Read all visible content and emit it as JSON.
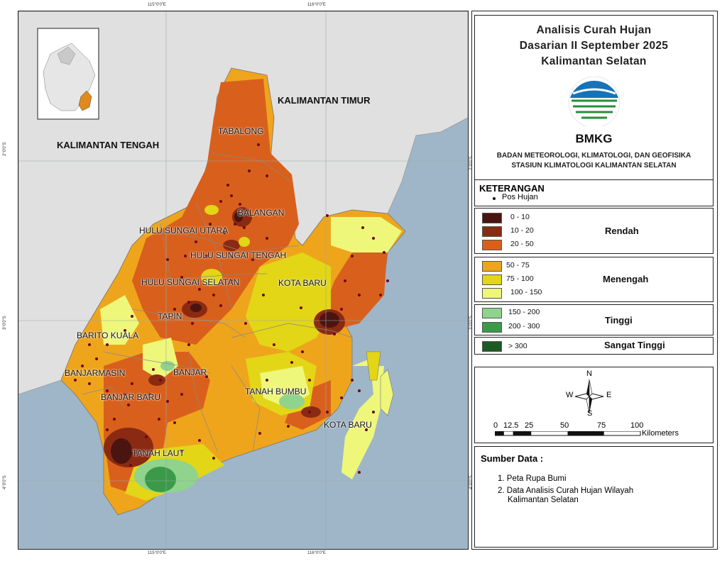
{
  "title": {
    "line1": "Analisis Curah Hujan",
    "line2": "Dasarian II September 2025",
    "line3": "Kalimantan Selatan"
  },
  "logo": {
    "text": "BMKG"
  },
  "agency": {
    "line1": "BADAN METEOROLOGI, KLIMATOLOGI, DAN GEOFISIKA",
    "line2": "STASIUN KLIMATOLOGI KALIMANTAN SELATAN"
  },
  "legend": {
    "heading": "KETERANGAN",
    "station_label": "Pos Hujan",
    "groups": [
      {
        "category": "Rendah",
        "classes": [
          {
            "range": "0 - 10",
            "color": "#4a1410"
          },
          {
            "range": "10 - 20",
            "color": "#8b2a12"
          },
          {
            "range": "20 - 50",
            "color": "#d9601c"
          }
        ]
      },
      {
        "category": "Menengah",
        "classes": [
          {
            "range": "50 - 75",
            "color": "#eea51c"
          },
          {
            "range": "75 - 100",
            "color": "#e2d616"
          },
          {
            "range": "100 - 150",
            "color": "#eef77a"
          }
        ]
      },
      {
        "category": "Tinggi",
        "classes": [
          {
            "range": "150 - 200",
            "color": "#8fd38c"
          },
          {
            "range": "200 - 300",
            "color": "#3a9a48"
          }
        ]
      },
      {
        "category": "Sangat Tinggi",
        "classes": [
          {
            "range": "> 300",
            "color": "#1c5a25"
          }
        ]
      }
    ]
  },
  "compass": {
    "n": "N",
    "s": "S",
    "e": "E",
    "w": "W"
  },
  "scale": {
    "ticks": [
      "0",
      "12.5",
      "25",
      "50",
      "75",
      "100"
    ],
    "unit": "Kilometers"
  },
  "source": {
    "heading": "Sumber Data :",
    "item1": "1. Peta Rupa Bumi",
    "item2_line1": "2. Data Analisis Curah Hujan Wilayah",
    "item2_line2": "Kalimantan Selatan"
  },
  "map": {
    "provinces": {
      "tengah": "KALIMANTAN TENGAH",
      "timur": "KALIMANTAN TIMUR"
    },
    "regencies": {
      "tabalong": "TABALONG",
      "balangan": "BALANGAN",
      "hsu": "HULU SUNGAI UTARA",
      "hst": "HULU SUNGAI TENGAH",
      "hss": "HULU SUNGAI SELATAN",
      "kotabaru1": "KOTA BARU",
      "tapin": "TAPIN",
      "baritokuala": "BARITO KUALA",
      "banjarmasin": "BANJARMASIN",
      "banjar": "BANJAR",
      "banjarbaru": "BANJAR BARU",
      "tanahbumbu": "TANAH BUMBU",
      "kotabaru2": "KOTA BARU",
      "tanahlaut": "TANAH LAUT"
    },
    "coords": {
      "top1": "115°0'0\"E",
      "top2": "116°0'0\"E",
      "bot1": "115°0'0\"E",
      "bot2": "116°0'0\"E",
      "left1": "2°0'0\"S",
      "left2": "3°0'0\"S",
      "left3": "4°0'0\"S",
      "right1": "2°0'0\"S",
      "right2": "3°0'0\"S",
      "right3": "4°0'0\"S"
    }
  }
}
